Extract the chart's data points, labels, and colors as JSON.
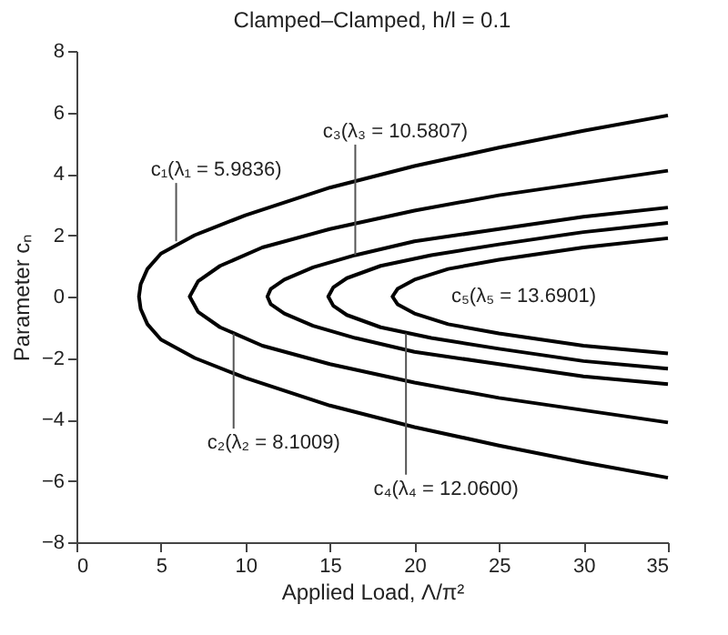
{
  "chart_data": {
    "type": "line",
    "title": "Clamped–Clamped, h/l = 0.1",
    "xlabel": "Applied Load, Λ/π²",
    "ylabel": "Parameter cₙ",
    "xlim": [
      0,
      35
    ],
    "ylim": [
      -8,
      8
    ],
    "xticks": [
      0,
      5,
      10,
      15,
      20,
      25,
      30,
      35
    ],
    "yticks": [
      -8,
      -6,
      -4,
      -2,
      0,
      2,
      4,
      6,
      8
    ],
    "grid": false,
    "marker": "none",
    "line_style": "solid",
    "series": [
      {
        "color": "#000000",
        "x": [
          35,
          30,
          25,
          20,
          15,
          10,
          7,
          5,
          4.2,
          3.8,
          3.7,
          3.8,
          4.2,
          5,
          7,
          10,
          15,
          20,
          25,
          30,
          35
        ],
        "values": [
          5.9,
          5.4,
          4.85,
          4.25,
          3.55,
          2.65,
          2.0,
          1.4,
          0.9,
          0.4,
          0,
          -0.4,
          -0.9,
          -1.4,
          -2.0,
          -2.65,
          -3.55,
          -4.25,
          -4.85,
          -5.4,
          -5.9
        ]
      },
      {
        "color": "#000000",
        "x": [
          35,
          30,
          25,
          20,
          15,
          11,
          8.5,
          7.2,
          6.7,
          7.2,
          8.5,
          11,
          15,
          20,
          25,
          30,
          35
        ],
        "values": [
          4.1,
          3.7,
          3.3,
          2.8,
          2.2,
          1.6,
          1.0,
          0.5,
          0,
          -0.5,
          -1.0,
          -1.6,
          -2.2,
          -2.8,
          -3.3,
          -3.7,
          -4.1
        ]
      },
      {
        "color": "#000000",
        "x": [
          35,
          30,
          25,
          20,
          16.5,
          14,
          12.3,
          11.5,
          11.3,
          11.5,
          12.3,
          14,
          16.5,
          20,
          25,
          30,
          35
        ],
        "values": [
          2.9,
          2.6,
          2.2,
          1.8,
          1.35,
          0.95,
          0.55,
          0.25,
          0,
          -0.25,
          -0.55,
          -0.95,
          -1.35,
          -1.8,
          -2.2,
          -2.6,
          -2.85
        ]
      },
      {
        "color": "#000000",
        "x": [
          35,
          30,
          25,
          21,
          18,
          16,
          15.2,
          14.9,
          15.2,
          16,
          18,
          21,
          25,
          30,
          35
        ],
        "values": [
          2.4,
          2.1,
          1.7,
          1.35,
          1.0,
          0.6,
          0.3,
          0,
          -0.3,
          -0.6,
          -1.0,
          -1.35,
          -1.7,
          -2.1,
          -2.35
        ]
      },
      {
        "color": "#000000",
        "x": [
          35,
          30,
          25,
          22,
          20,
          19,
          18.7,
          19,
          20,
          22,
          25,
          30,
          35
        ],
        "values": [
          1.9,
          1.6,
          1.2,
          0.9,
          0.55,
          0.25,
          0,
          -0.25,
          -0.55,
          -0.9,
          -1.2,
          -1.6,
          -1.85
        ]
      }
    ],
    "annotations": [
      {
        "text": "c₁(λ₁ = 5.9836)",
        "x": 5.9,
        "y": 1.8
      },
      {
        "text": "c₃(λ₃ = 10.5807)",
        "x": 16.5,
        "y": 1.35
      },
      "c₅(λ₅ = 13.6901)",
      {
        "text": "c₂(λ₂ = 8.1009)",
        "x": 9.3,
        "y": -1.2
      },
      {
        "text": "c₄(λ₄ = 12.0600)",
        "x": 19.5,
        "y": -1.2
      }
    ]
  }
}
